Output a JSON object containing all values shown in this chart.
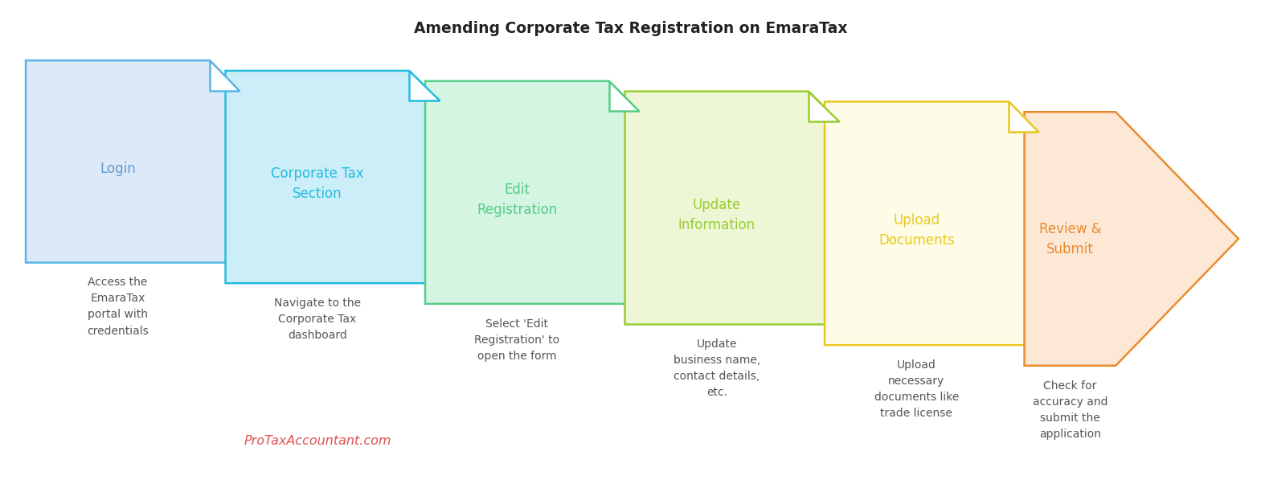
{
  "title": "Amending Corporate Tax Registration on EmaraTax",
  "title_fontsize": 13.5,
  "title_fontweight": "bold",
  "background_color": "#ffffff",
  "steps": [
    {
      "label": "Login",
      "shape": "tab_rect",
      "fill_color": "#dce9f9",
      "edge_color": "#5ab4e8",
      "text_color": "#6699cc",
      "description": "Access the\nEmaraTax\nportal with\ncredentials",
      "desc_color": "#555555"
    },
    {
      "label": "Corporate Tax\nSection",
      "shape": "tab_rect",
      "fill_color": "#cceef8",
      "edge_color": "#22bce0",
      "text_color": "#22bce0",
      "description": "Navigate to the\nCorporate Tax\ndashboard",
      "desc_color": "#555555"
    },
    {
      "label": "Edit\nRegistration",
      "shape": "tab_rect",
      "fill_color": "#d5f5e3",
      "edge_color": "#55cc88",
      "text_color": "#55cc88",
      "description": "Select 'Edit\nRegistration' to\nopen the form",
      "desc_color": "#555555"
    },
    {
      "label": "Update\nInformation",
      "shape": "tab_rect",
      "fill_color": "#eef7d5",
      "edge_color": "#99cc33",
      "text_color": "#99cc33",
      "description": "Update\nbusiness name,\ncontact details,\netc.",
      "desc_color": "#555555"
    },
    {
      "label": "Upload\nDocuments",
      "shape": "tab_rect",
      "fill_color": "#fefce6",
      "edge_color": "#e8c820",
      "text_color": "#e8c820",
      "description": "Upload\nnecessary\ndocuments like\ntrade license",
      "desc_color": "#555555"
    },
    {
      "label": "Review &\nSubmit",
      "shape": "arrow",
      "fill_color": "#fde8d5",
      "edge_color": "#e88c30",
      "text_color": "#e88c30",
      "description": "Check for\naccuracy and\nsubmit the\napplication",
      "desc_color": "#555555"
    }
  ],
  "watermark": "ProTaxAccountant.com",
  "watermark_color": "#e05050",
  "fig_width": 15.69,
  "fig_height": 5.97,
  "dpi": 100
}
